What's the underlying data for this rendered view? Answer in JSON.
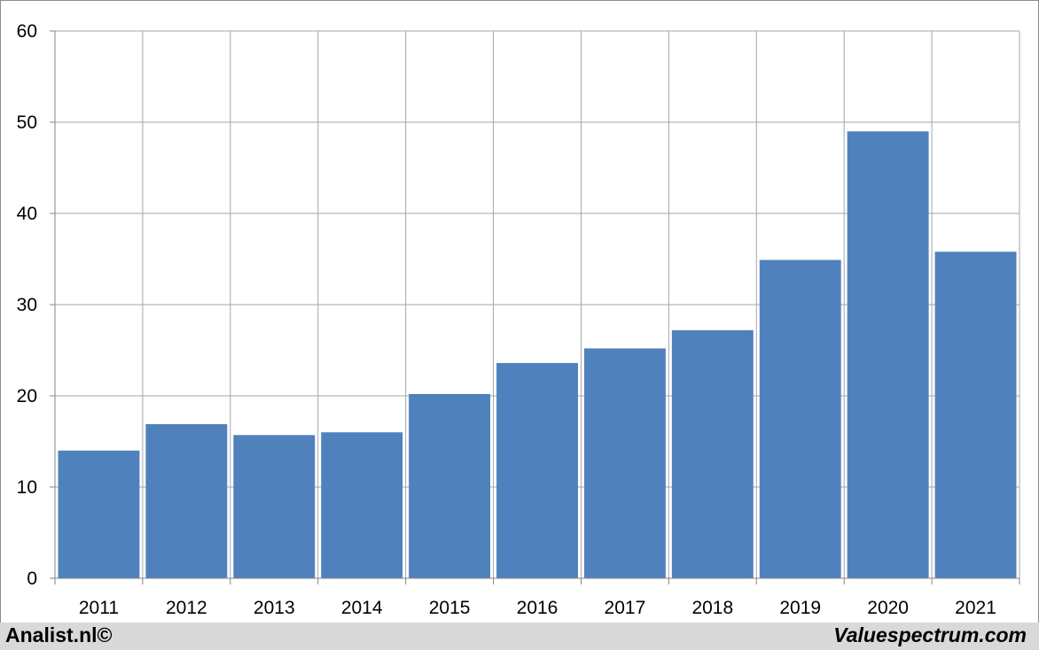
{
  "chart_data": {
    "type": "bar",
    "categories": [
      "2011",
      "2012",
      "2013",
      "2014",
      "2015",
      "2016",
      "2017",
      "2018",
      "2019",
      "2020",
      "2021"
    ],
    "values": [
      14.0,
      16.9,
      15.7,
      16.0,
      20.2,
      23.6,
      25.2,
      27.2,
      34.9,
      49.0,
      35.8
    ],
    "ylim": [
      0,
      60
    ],
    "yticks": [
      0,
      10,
      20,
      30,
      40,
      50,
      60
    ],
    "grid": true,
    "bar_color": "#4f81bd",
    "grid_color": "#a6a6a6"
  },
  "footer": {
    "left_text": "Analist.nl©",
    "right_text": "Valuespectrum.com"
  }
}
